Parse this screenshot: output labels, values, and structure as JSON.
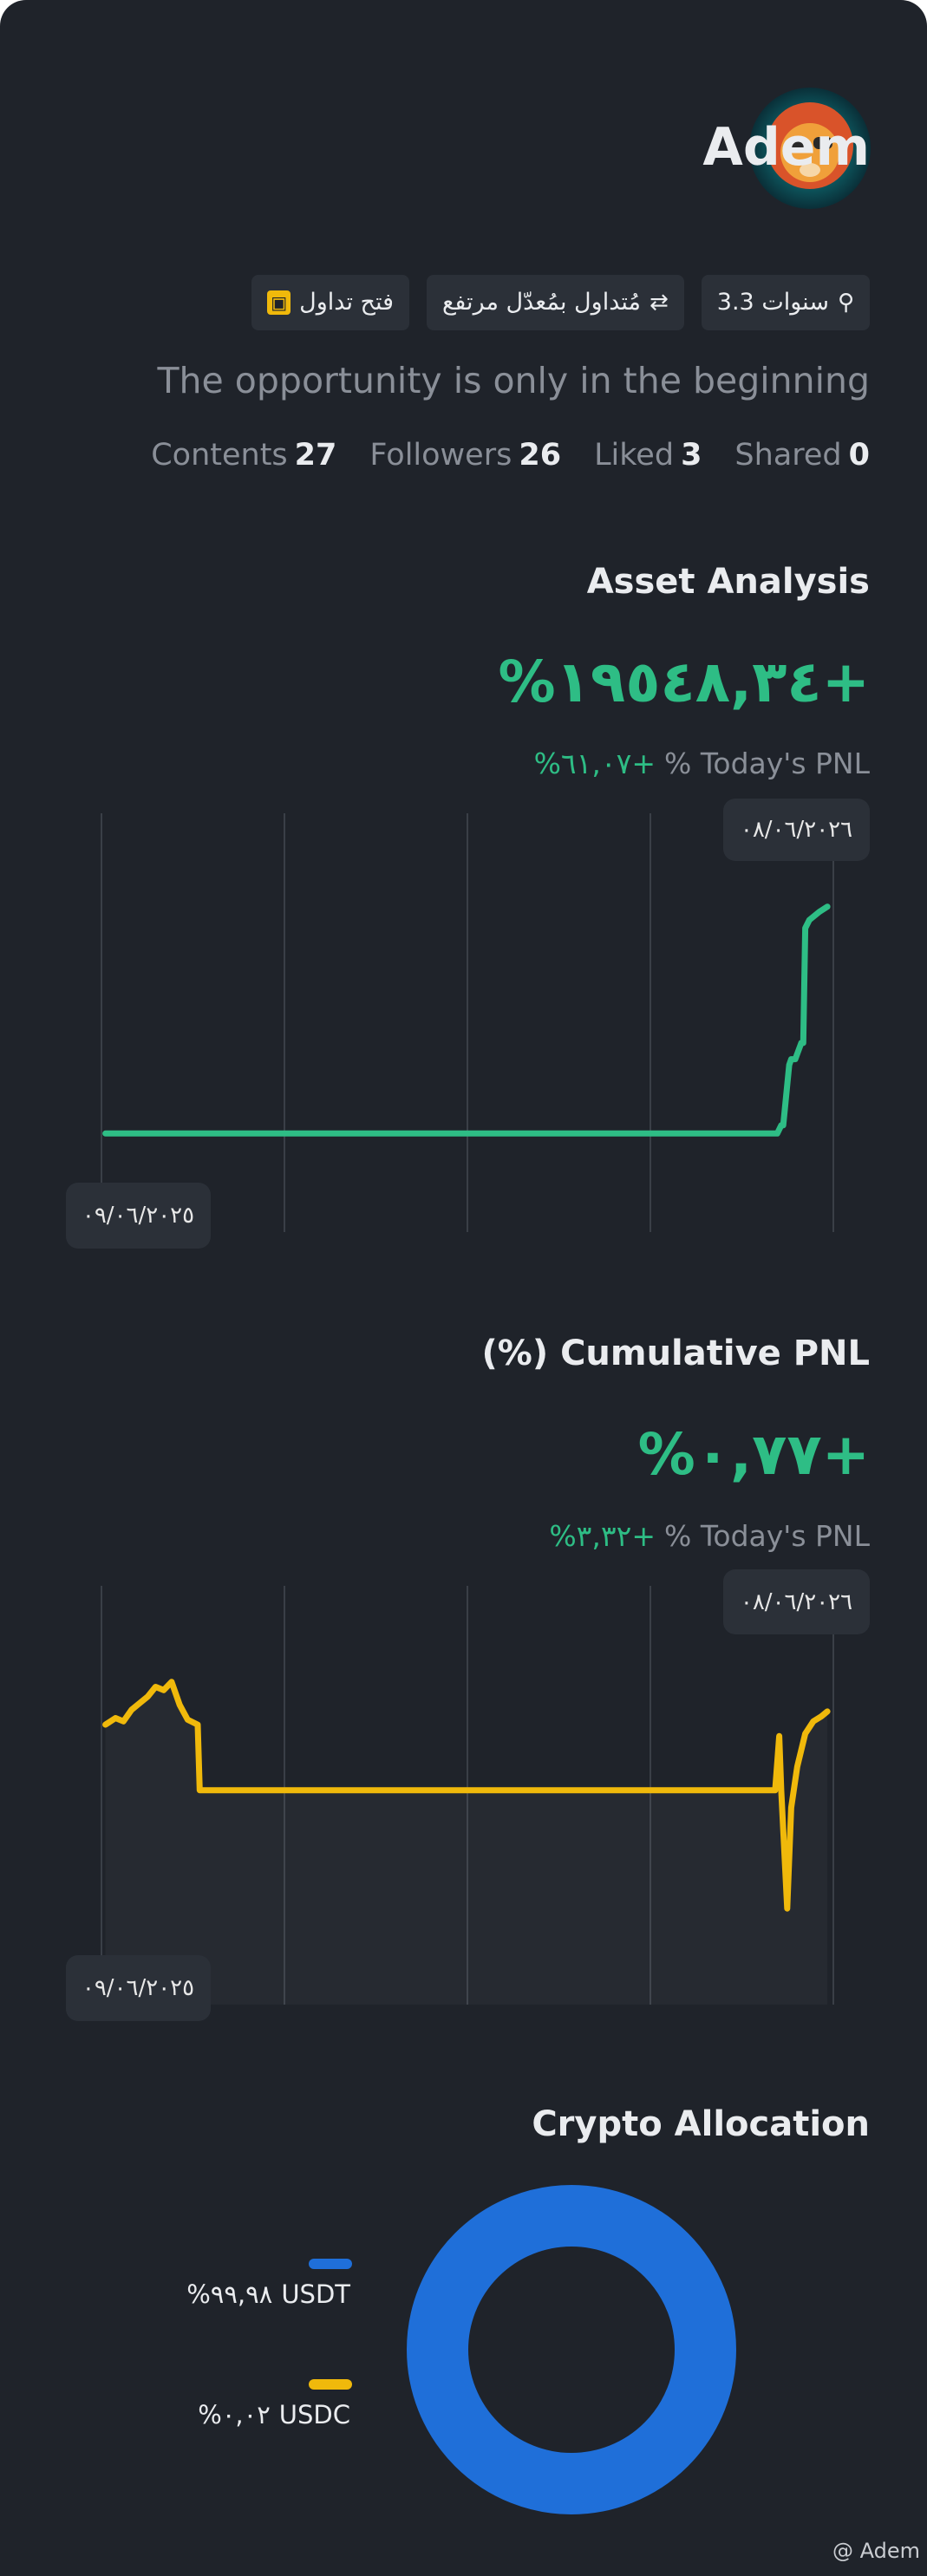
{
  "profile": {
    "name": "Adem",
    "badges": [
      "3.3 سنوات",
      "مُتداول بمُعدّل مرتفع",
      "فتح تداول"
    ],
    "bio": "The opportunity is only in the beginning",
    "stats": [
      {
        "label": "Contents",
        "value": 27
      },
      {
        "label": "Followers",
        "value": 26
      },
      {
        "label": "Liked",
        "value": 3
      },
      {
        "label": "Shared",
        "value": 0
      }
    ]
  },
  "chart_data": [
    {
      "type": "line",
      "title": "Asset Analysis",
      "headline": "%١٩٥٤٨,٣٤+",
      "today_value": "%٦١,٠٧+",
      "today_label": "% Today's PNL",
      "date_labels": [
        "٠٩/٠٦/٢٠٢٥",
        "٠٨/٠٦/٢٠٢٦"
      ],
      "xlim": [
        0,
        365
      ],
      "ylim": [
        -8500,
        27600
      ],
      "area": false,
      "series": [
        {
          "color": "#2ebd85",
          "x": [
            2,
            100,
            200,
            300,
            337,
            339,
            340,
            343,
            344,
            346,
            349,
            350,
            351,
            353,
            358,
            362
          ],
          "values": [
            0,
            0,
            0,
            0,
            0,
            700,
            700,
            5900,
            6400,
            6400,
            7800,
            7800,
            17700,
            18400,
            19100,
            19548
          ]
        }
      ]
    },
    {
      "type": "line",
      "title": "(%) Cumulative PNL",
      "headline": "%٠,٧٧+",
      "today_value": "%٣,٣٢+",
      "today_label": "% Today's PNL",
      "date_labels": [
        "٠٩/٠٦/٢٠٢٥",
        "٠٨/٠٦/٢٠٢٦"
      ],
      "xlim": [
        0,
        365
      ],
      "ylim": [
        -2.8,
        2.3
      ],
      "area": true,
      "series": [
        {
          "color": "#f0b90b",
          "x": [
            2,
            7,
            11,
            15,
            19,
            23,
            27,
            31,
            35,
            39,
            43,
            48,
            49,
            150,
            250,
            336,
            338,
            339,
            342,
            344,
            347,
            351,
            355,
            359,
            362
          ],
          "values": [
            0.61,
            0.69,
            0.65,
            0.79,
            0.87,
            0.95,
            1.07,
            1.03,
            1.13,
            0.85,
            0.67,
            0.61,
            -0.19,
            -0.19,
            -0.19,
            -0.19,
            0.47,
            -0.19,
            -1.63,
            -0.4,
            0.1,
            0.5,
            0.65,
            0.71,
            0.77
          ]
        }
      ]
    },
    {
      "type": "pie",
      "title": "Crypto Allocation",
      "categories": [
        "USDT",
        "USDC"
      ],
      "values": [
        99.98,
        0.02
      ],
      "value_labels": [
        "%٩٩,٩٨",
        "%٠,٠٢"
      ],
      "colors": [
        "#1f6fd9",
        "#f0b90b"
      ]
    }
  ],
  "watermark": "@ Adem"
}
